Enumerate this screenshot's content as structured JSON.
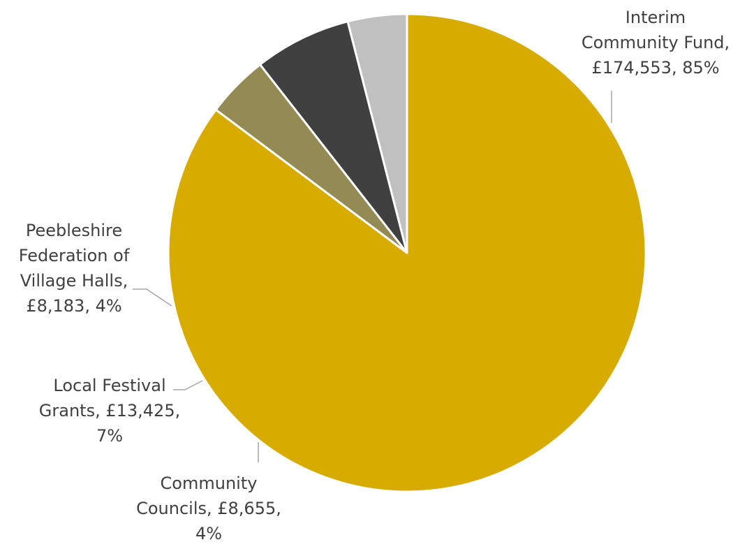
{
  "chart_data": {
    "type": "pie",
    "title": "",
    "start_angle_deg": 0,
    "direction": "clockwise",
    "slices": [
      {
        "name": "Interim Community Fund",
        "value": 174553,
        "percent": 85,
        "color": "#d8ab00",
        "label_lines": [
          "Interim",
          "Community Fund,",
          "£174,553, 85%"
        ]
      },
      {
        "name": "Community Councils",
        "value": 8655,
        "percent": 4,
        "color": "#948a54",
        "label_lines": [
          "Community",
          "Councils, £8,655,",
          "4%"
        ]
      },
      {
        "name": "Local Festival Grants",
        "value": 13425,
        "percent": 7,
        "color": "#404040",
        "label_lines": [
          "Local Festival",
          "Grants, £13,425,",
          "7%"
        ]
      },
      {
        "name": "Peebleshire Federation of Village Halls",
        "value": 8183,
        "percent": 4,
        "color": "#c0c0c0",
        "label_lines": [
          "Peebleshire",
          "Federation of",
          "Village Halls,",
          "£8,183, 4%"
        ]
      }
    ]
  }
}
